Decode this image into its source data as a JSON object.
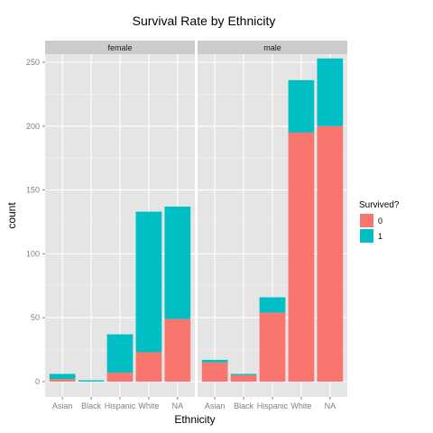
{
  "chart_data": {
    "type": "bar",
    "stacked": true,
    "title": "Survival Rate by Ethnicity",
    "xlabel": "Ethnicity",
    "ylabel": "count",
    "ylim": [
      0,
      265
    ],
    "yticks": [
      0,
      50,
      100,
      150,
      200,
      250
    ],
    "categories": [
      "Asian",
      "Black",
      "Hispanic",
      "White",
      "NA"
    ],
    "legend": {
      "title": "Survived?",
      "placement": "right"
    },
    "series_colors": {
      "0": "#f8766d",
      "1": "#00bfc4"
    },
    "facets": [
      {
        "label": "female",
        "series": [
          {
            "name": "0",
            "values": [
              2,
              0,
              7,
              23,
              49
            ]
          },
          {
            "name": "1",
            "values": [
              4,
              1,
              30,
              110,
              88
            ]
          }
        ]
      },
      {
        "label": "male",
        "series": [
          {
            "name": "0",
            "values": [
              15,
              5,
              54,
              195,
              200
            ]
          },
          {
            "name": "1",
            "values": [
              2,
              1,
              12,
              41,
              53
            ]
          }
        ]
      }
    ],
    "grid": true
  }
}
